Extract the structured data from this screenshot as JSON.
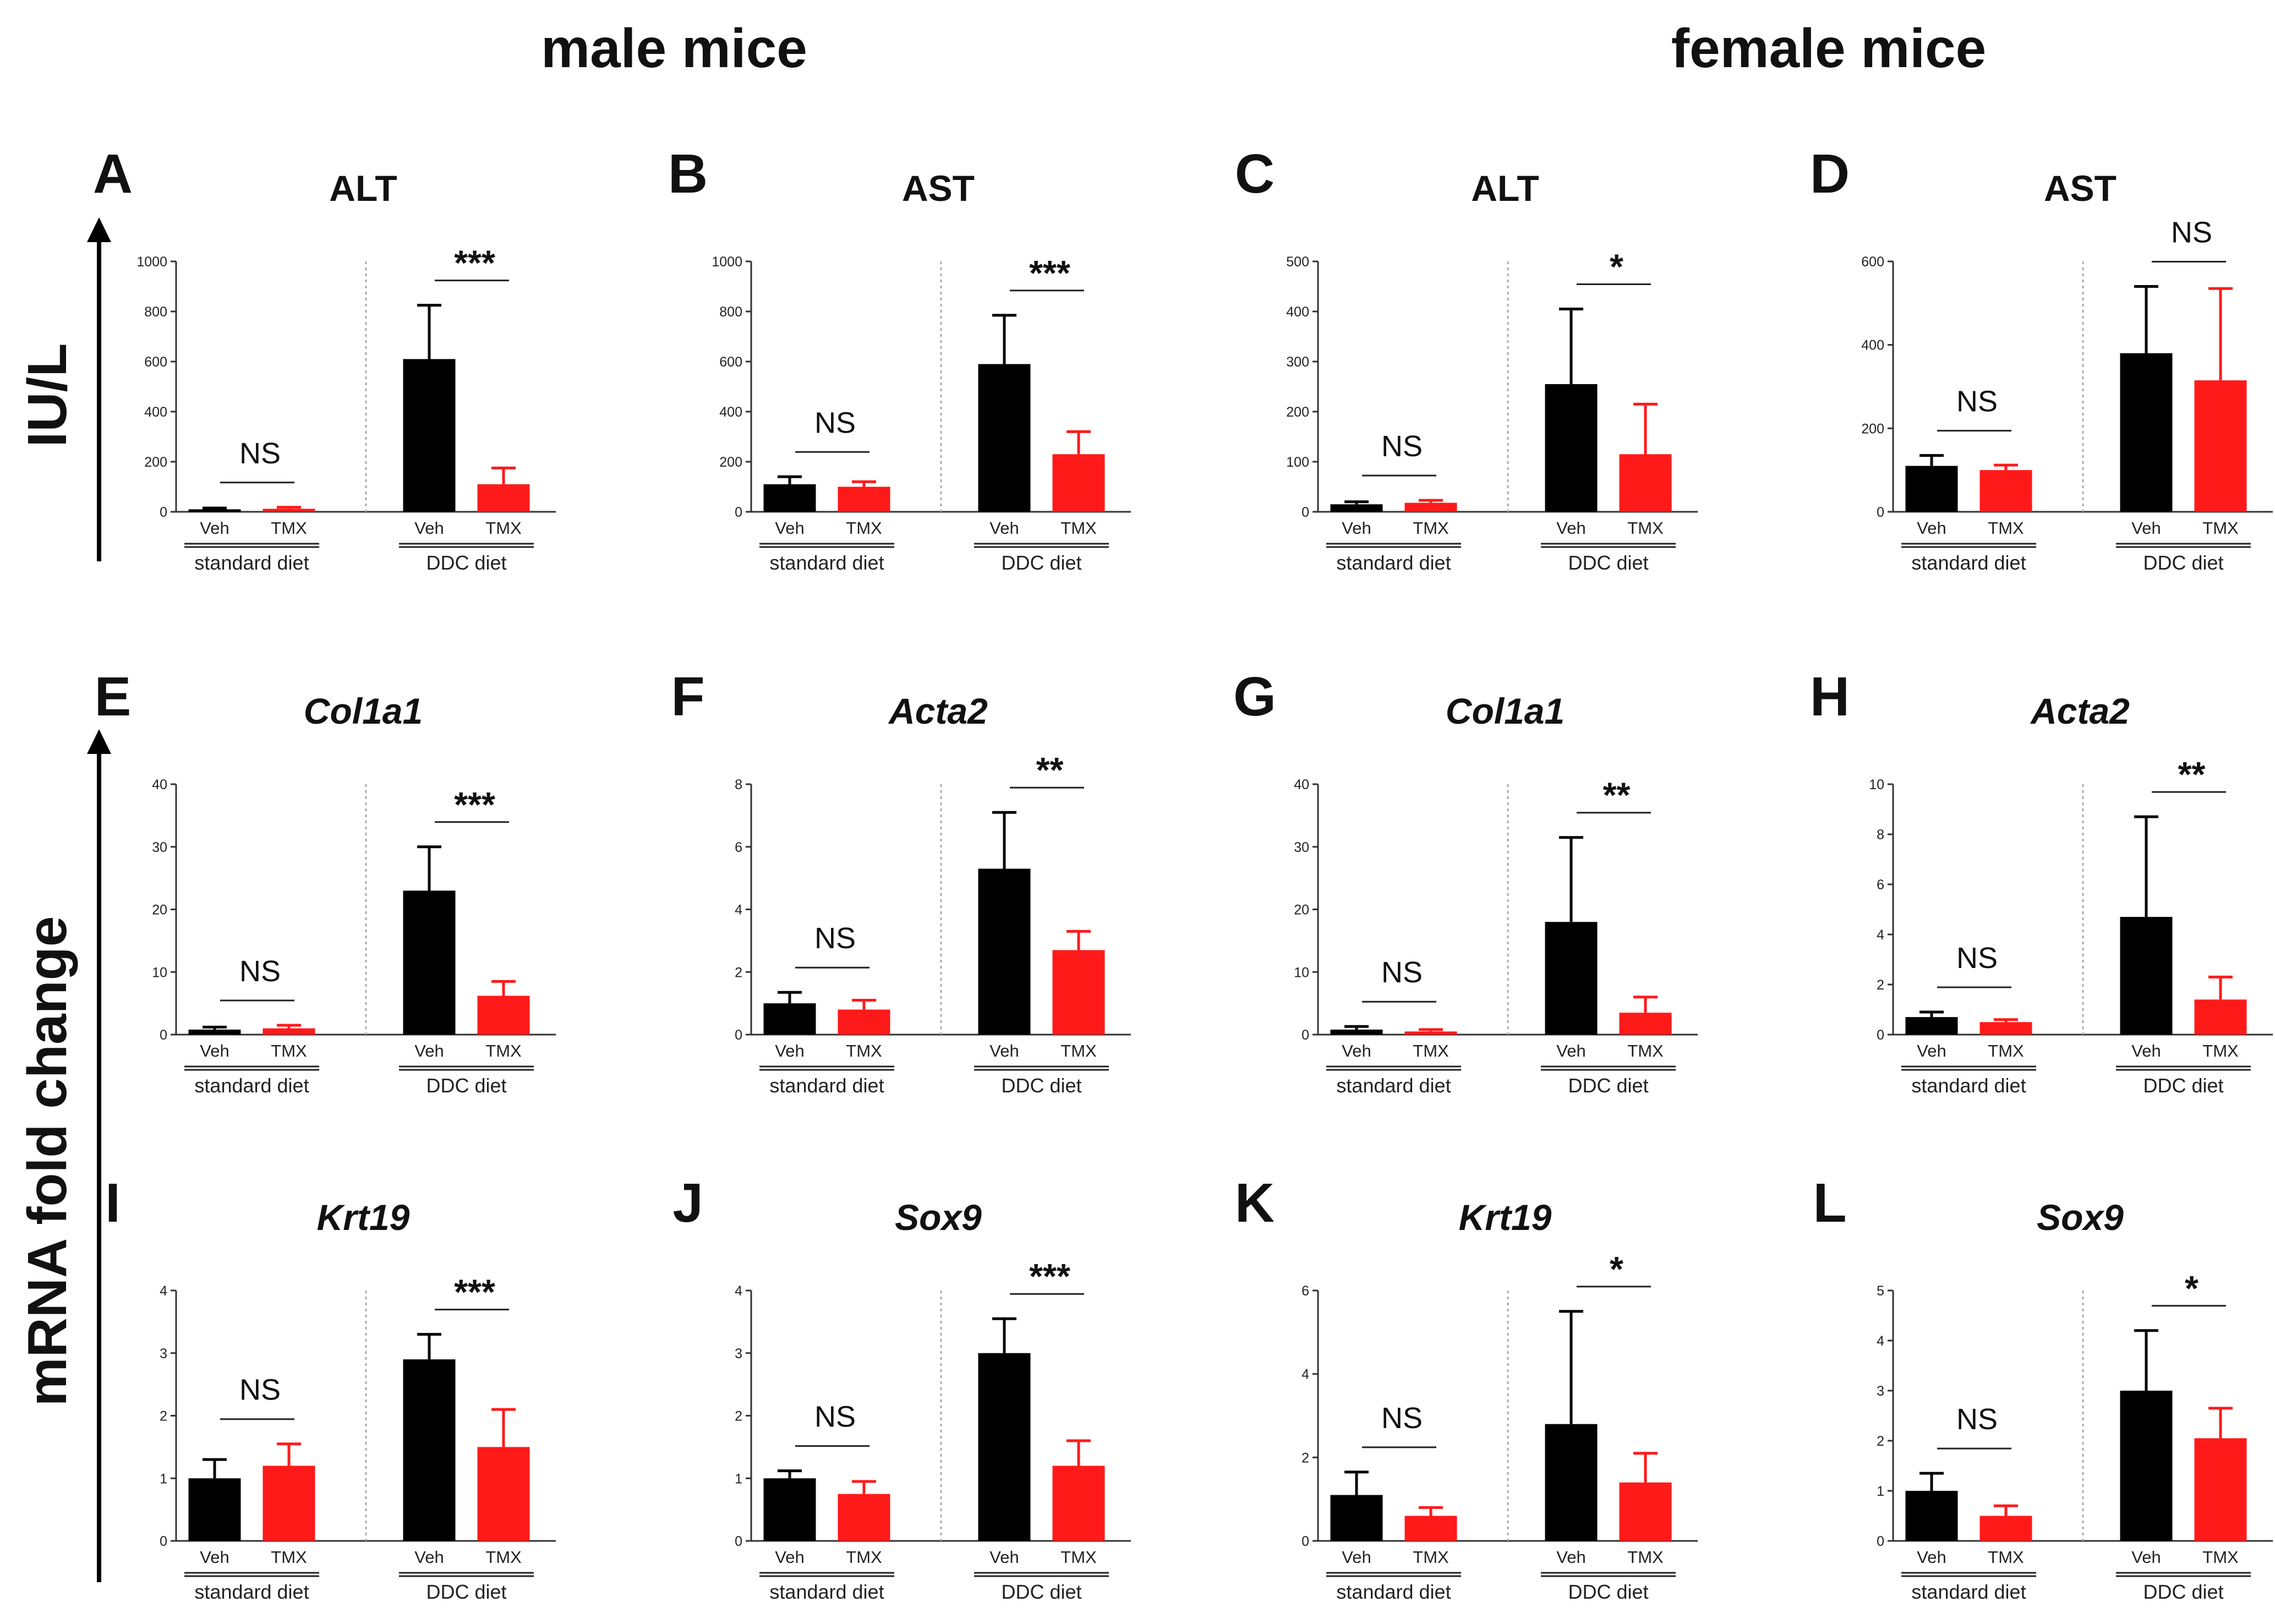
{
  "headers": {
    "left": "male mice",
    "right": "female mice"
  },
  "y_labels": {
    "top": "IU/L",
    "bottom": "mRNA fold change"
  },
  "colors": {
    "veh": "#000000",
    "tmx": "#ff1a1a"
  },
  "x_labels": {
    "veh": "Veh",
    "tmx": "TMX"
  },
  "group_labels": {
    "standard": "standard diet",
    "ddc": "DDC diet"
  },
  "chart_data": [
    {
      "panel": "A",
      "type": "bar",
      "title": "ALT",
      "title_style": "normal",
      "ylim": [
        0,
        1000
      ],
      "yticks": [
        0,
        200,
        400,
        600,
        800,
        1000
      ],
      "groups": [
        "standard diet",
        "DDC diet"
      ],
      "series": [
        {
          "name": "Veh",
          "values": [
            10,
            610
          ],
          "errors": [
            5,
            215
          ]
        },
        {
          "name": "TMX",
          "values": [
            12,
            110
          ],
          "errors": [
            6,
            65
          ]
        }
      ],
      "significance": [
        "NS",
        "***"
      ]
    },
    {
      "panel": "B",
      "type": "bar",
      "title": "AST",
      "title_style": "normal",
      "ylim": [
        0,
        1000
      ],
      "yticks": [
        0,
        200,
        400,
        600,
        800,
        1000
      ],
      "groups": [
        "standard diet",
        "DDC diet"
      ],
      "series": [
        {
          "name": "Veh",
          "values": [
            110,
            590
          ],
          "errors": [
            30,
            195
          ]
        },
        {
          "name": "TMX",
          "values": [
            100,
            230
          ],
          "errors": [
            20,
            90
          ]
        }
      ],
      "significance": [
        "NS",
        "***"
      ]
    },
    {
      "panel": "C",
      "type": "bar",
      "title": "ALT",
      "title_style": "normal",
      "ylim": [
        0,
        500
      ],
      "yticks": [
        0,
        100,
        200,
        300,
        400,
        500
      ],
      "groups": [
        "standard diet",
        "DDC diet"
      ],
      "series": [
        {
          "name": "Veh",
          "values": [
            15,
            255
          ],
          "errors": [
            5,
            150
          ]
        },
        {
          "name": "TMX",
          "values": [
            18,
            115
          ],
          "errors": [
            5,
            100
          ]
        }
      ],
      "significance": [
        "NS",
        "*"
      ]
    },
    {
      "panel": "D",
      "type": "bar",
      "title": "AST",
      "title_style": "normal",
      "ylim": [
        0,
        600
      ],
      "yticks": [
        0,
        200,
        400,
        600
      ],
      "groups": [
        "standard diet",
        "DDC diet"
      ],
      "series": [
        {
          "name": "Veh",
          "values": [
            110,
            380
          ],
          "errors": [
            25,
            160
          ]
        },
        {
          "name": "TMX",
          "values": [
            100,
            315
          ],
          "errors": [
            12,
            220
          ]
        }
      ],
      "significance": [
        "NS",
        "NS"
      ]
    },
    {
      "panel": "E",
      "type": "bar",
      "title": "Col1a1",
      "title_style": "italic",
      "ylim": [
        0,
        40
      ],
      "yticks": [
        0,
        10,
        20,
        30,
        40
      ],
      "groups": [
        "standard diet",
        "DDC diet"
      ],
      "series": [
        {
          "name": "Veh",
          "values": [
            0.8,
            23
          ],
          "errors": [
            0.4,
            7
          ]
        },
        {
          "name": "TMX",
          "values": [
            1.0,
            6.2
          ],
          "errors": [
            0.5,
            2.3
          ]
        }
      ],
      "significance": [
        "NS",
        "***"
      ]
    },
    {
      "panel": "F",
      "type": "bar",
      "title": "Acta2",
      "title_style": "italic",
      "ylim": [
        0,
        8
      ],
      "yticks": [
        0,
        2,
        4,
        6,
        8
      ],
      "groups": [
        "standard diet",
        "DDC diet"
      ],
      "series": [
        {
          "name": "Veh",
          "values": [
            1.0,
            5.3
          ],
          "errors": [
            0.35,
            1.8
          ]
        },
        {
          "name": "TMX",
          "values": [
            0.8,
            2.7
          ],
          "errors": [
            0.3,
            0.6
          ]
        }
      ],
      "significance": [
        "NS",
        "**"
      ]
    },
    {
      "panel": "G",
      "type": "bar",
      "title": "Col1a1",
      "title_style": "italic",
      "ylim": [
        0,
        40
      ],
      "yticks": [
        0,
        10,
        20,
        30,
        40
      ],
      "groups": [
        "standard diet",
        "DDC diet"
      ],
      "series": [
        {
          "name": "Veh",
          "values": [
            0.8,
            18
          ],
          "errors": [
            0.5,
            13.5
          ]
        },
        {
          "name": "TMX",
          "values": [
            0.5,
            3.5
          ],
          "errors": [
            0.3,
            2.5
          ]
        }
      ],
      "significance": [
        "NS",
        "**"
      ]
    },
    {
      "panel": "H",
      "type": "bar",
      "title": "Acta2",
      "title_style": "italic",
      "ylim": [
        0,
        10
      ],
      "yticks": [
        0,
        2,
        4,
        6,
        8,
        10
      ],
      "groups": [
        "standard diet",
        "DDC diet"
      ],
      "series": [
        {
          "name": "Veh",
          "values": [
            0.7,
            4.7
          ],
          "errors": [
            0.2,
            4.0
          ]
        },
        {
          "name": "TMX",
          "values": [
            0.5,
            1.4
          ],
          "errors": [
            0.1,
            0.9
          ]
        }
      ],
      "significance": [
        "NS",
        "**"
      ]
    },
    {
      "panel": "I",
      "type": "bar",
      "title": "Krt19",
      "title_style": "italic",
      "ylim": [
        0,
        4
      ],
      "yticks": [
        0,
        1,
        2,
        3,
        4
      ],
      "groups": [
        "standard diet",
        "DDC diet"
      ],
      "series": [
        {
          "name": "Veh",
          "values": [
            1.0,
            2.9
          ],
          "errors": [
            0.3,
            0.4
          ]
        },
        {
          "name": "TMX",
          "values": [
            1.2,
            1.5
          ],
          "errors": [
            0.35,
            0.6
          ]
        }
      ],
      "significance": [
        "NS",
        "***"
      ]
    },
    {
      "panel": "J",
      "type": "bar",
      "title": "Sox9",
      "title_style": "italic",
      "ylim": [
        0,
        4
      ],
      "yticks": [
        0,
        1,
        2,
        3,
        4
      ],
      "groups": [
        "standard diet",
        "DDC diet"
      ],
      "series": [
        {
          "name": "Veh",
          "values": [
            1.0,
            3.0
          ],
          "errors": [
            0.12,
            0.55
          ]
        },
        {
          "name": "TMX",
          "values": [
            0.75,
            1.2
          ],
          "errors": [
            0.2,
            0.4
          ]
        }
      ],
      "significance": [
        "NS",
        "***"
      ]
    },
    {
      "panel": "K",
      "type": "bar",
      "title": "Krt19",
      "title_style": "italic",
      "ylim": [
        0,
        6
      ],
      "yticks": [
        0,
        2,
        4,
        6
      ],
      "groups": [
        "standard diet",
        "DDC diet"
      ],
      "series": [
        {
          "name": "Veh",
          "values": [
            1.1,
            2.8
          ],
          "errors": [
            0.55,
            2.7
          ]
        },
        {
          "name": "TMX",
          "values": [
            0.6,
            1.4
          ],
          "errors": [
            0.2,
            0.7
          ]
        }
      ],
      "significance": [
        "NS",
        "*"
      ]
    },
    {
      "panel": "L",
      "type": "bar",
      "title": "Sox9",
      "title_style": "italic",
      "ylim": [
        0,
        5
      ],
      "yticks": [
        0,
        1,
        2,
        3,
        4,
        5
      ],
      "groups": [
        "standard diet",
        "DDC diet"
      ],
      "series": [
        {
          "name": "Veh",
          "values": [
            1.0,
            3.0
          ],
          "errors": [
            0.35,
            1.2
          ]
        },
        {
          "name": "TMX",
          "values": [
            0.5,
            2.05
          ],
          "errors": [
            0.2,
            0.6
          ]
        }
      ],
      "significance": [
        "NS",
        "*"
      ]
    }
  ]
}
